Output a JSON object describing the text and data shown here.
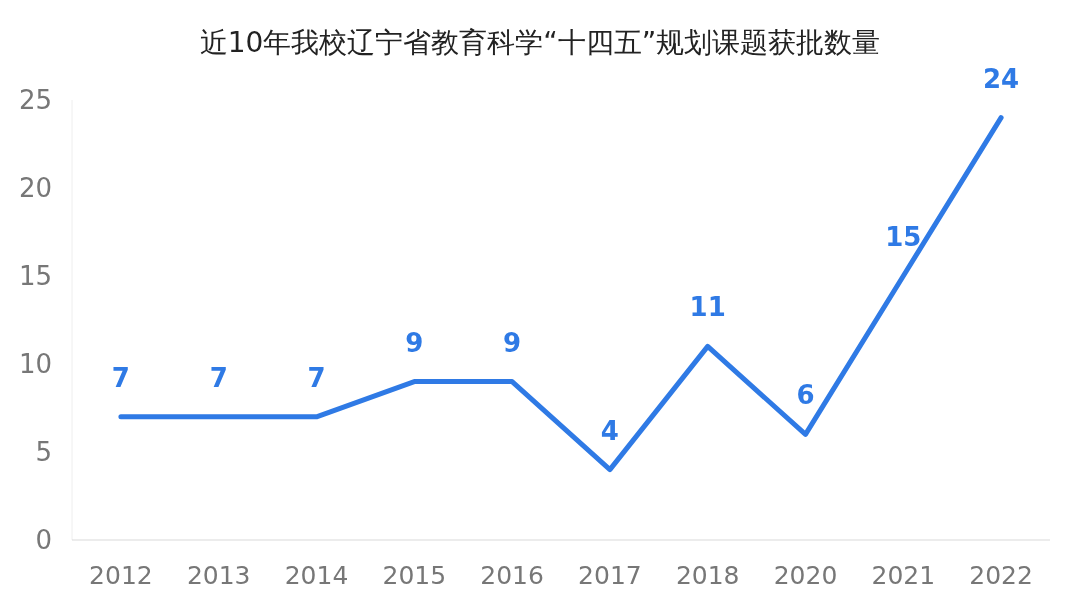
{
  "chart_data": {
    "type": "line",
    "title": "近10年我校辽宁省教育科学“十四五”规划课题获批数量",
    "categories": [
      "2012",
      "2013",
      "2014",
      "2015",
      "2016",
      "2017",
      "2018",
      "2020",
      "2021",
      "2022"
    ],
    "series": [
      {
        "color": "#2f7ae5",
        "values": [
          7,
          7,
          7,
          9,
          9,
          4,
          11,
          6,
          15,
          24
        ]
      }
    ],
    "ylim": [
      0,
      25
    ],
    "yticks": [
      0,
      5,
      10,
      15,
      20,
      25
    ],
    "data_labels": true,
    "grid": false,
    "marker": "none",
    "line_style": "solid"
  }
}
